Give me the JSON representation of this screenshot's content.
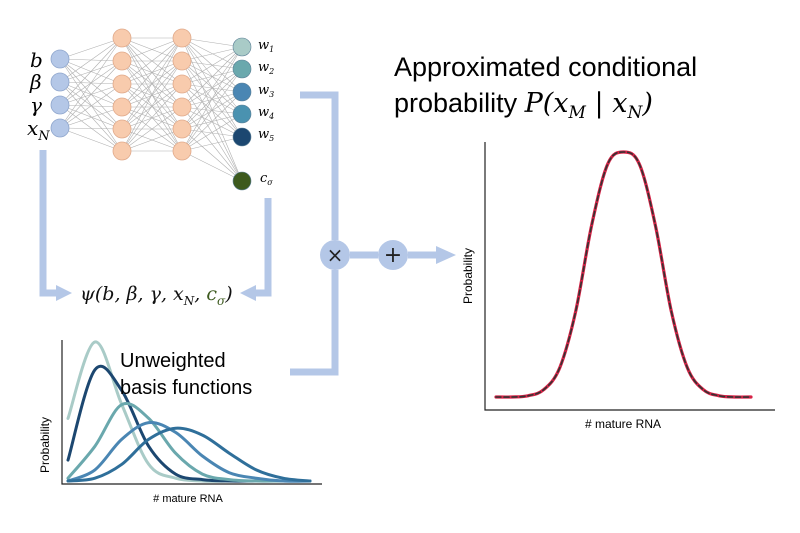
{
  "network": {
    "inputs": [
      "b",
      "β",
      "γ",
      "x",
      "N"
    ],
    "input_labels": [
      {
        "main": "b",
        "sub": ""
      },
      {
        "main": "β",
        "sub": ""
      },
      {
        "main": "γ",
        "sub": ""
      },
      {
        "main": "x",
        "sub": "N"
      }
    ],
    "weights": [
      {
        "main": "w",
        "sub": "1",
        "color": "#a9cbc7"
      },
      {
        "main": "w",
        "sub": "2",
        "color": "#6aa8ad"
      },
      {
        "main": "w",
        "sub": "3",
        "color": "#4a86b3"
      },
      {
        "main": "w",
        "sub": "4",
        "color": "#4a92b0"
      },
      {
        "main": "w",
        "sub": "5",
        "color": "#1c4770"
      }
    ],
    "sigma": {
      "main": "c",
      "sub": "σ",
      "color": "#3d5a1e"
    },
    "input_color": "#b4c7e7",
    "hidden_color": "#f8cbad"
  },
  "psi": {
    "prefix": "ψ(b, β, γ, x",
    "sub_n": "N",
    "sep": ", ",
    "c": "c",
    "sub_sigma": "σ",
    "suffix": ")",
    "c_color": "#3d5a1e"
  },
  "operators": {
    "multiply": "×",
    "add": "+",
    "color": "#b4c7e7"
  },
  "basis_panel": {
    "label_line1": "Unweighted",
    "label_line2": "basis functions",
    "xlabel": "# mature RNA",
    "ylabel": "Probability"
  },
  "result_panel": {
    "title_line1": "Approximated conditional",
    "title_line2_text": "probability ",
    "title_math": {
      "P": "P",
      "x1": "x",
      "sub1": "M",
      "bar": " | ",
      "x2": "x",
      "sub2": "N"
    },
    "xlabel": "# mature RNA",
    "ylabel": "Probability"
  },
  "chart_data": [
    {
      "type": "line",
      "series": [
        {
          "color": "#a9cbc7",
          "values": [
            0.45,
            1.0,
            0.55,
            0.12,
            0.02,
            0.0,
            0.0,
            0.0,
            0.0,
            0.0
          ]
        },
        {
          "color": "#1c4770",
          "values": [
            0.15,
            0.8,
            0.65,
            0.25,
            0.05,
            0.01,
            0.0,
            0.0,
            0.0,
            0.0
          ]
        },
        {
          "color": "#6aa8ad",
          "values": [
            0.02,
            0.25,
            0.55,
            0.45,
            0.2,
            0.05,
            0.01,
            0.0,
            0.0,
            0.0
          ]
        },
        {
          "color": "#4a86b3",
          "values": [
            0.0,
            0.08,
            0.3,
            0.42,
            0.35,
            0.18,
            0.06,
            0.02,
            0.0,
            0.0
          ]
        },
        {
          "color": "#2f6f9a",
          "values": [
            0.0,
            0.02,
            0.12,
            0.3,
            0.38,
            0.33,
            0.2,
            0.08,
            0.02,
            0.0
          ]
        }
      ],
      "xlabel": "# mature RNA",
      "ylabel": "Probability"
    },
    {
      "type": "line",
      "series": [
        {
          "color": "#d62246",
          "line_style": "solid",
          "values": [
            0.0,
            0.0,
            0.005,
            0.03,
            0.12,
            0.35,
            0.7,
            0.95,
            1.0,
            0.95,
            0.7,
            0.35,
            0.12,
            0.03,
            0.005,
            0.0,
            0.0
          ]
        },
        {
          "color": "#333333",
          "line_style": "dashed",
          "values": [
            0.0,
            0.0,
            0.005,
            0.03,
            0.12,
            0.35,
            0.7,
            0.95,
            1.0,
            0.95,
            0.7,
            0.35,
            0.12,
            0.03,
            0.005,
            0.0,
            0.0
          ]
        }
      ],
      "xlabel": "# mature RNA",
      "ylabel": "Probability"
    }
  ]
}
